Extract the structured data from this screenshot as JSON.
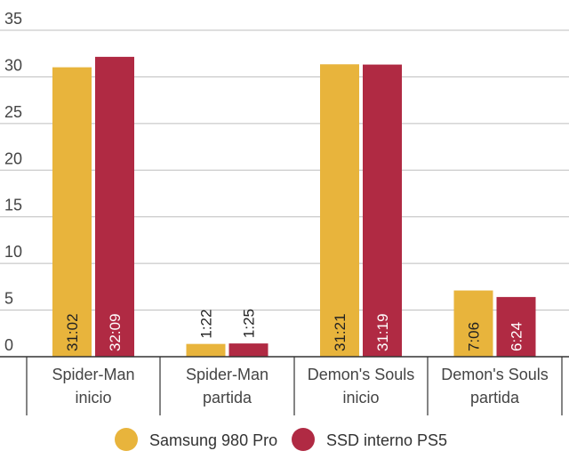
{
  "chart_data": {
    "type": "bar",
    "title": "",
    "xlabel": "",
    "ylabel": "",
    "ylim": [
      0,
      35
    ],
    "yticks": [
      0,
      5,
      10,
      15,
      20,
      25,
      30,
      35
    ],
    "grid": true,
    "legend_position": "bottom",
    "categories": [
      [
        "Spider-Man",
        "inicio"
      ],
      [
        "Spider-Man",
        "partida"
      ],
      [
        "Demon's Souls",
        "inicio"
      ],
      [
        "Demon's Souls",
        "partida"
      ]
    ],
    "series": [
      {
        "name": "Samsung 980 Pro",
        "color": "#E8B43C",
        "values": [
          31.03,
          1.37,
          31.35,
          7.1
        ],
        "labels": [
          "31:02",
          "1:22",
          "31:21",
          "7:06"
        ],
        "label_color": "#222222"
      },
      {
        "name": "SSD interno PS5",
        "color": "#B02A43",
        "values": [
          32.15,
          1.42,
          31.32,
          6.4
        ],
        "labels": [
          "32:09",
          "1:25",
          "31:19",
          "6:24"
        ],
        "label_color": "#ffffff"
      }
    ]
  }
}
